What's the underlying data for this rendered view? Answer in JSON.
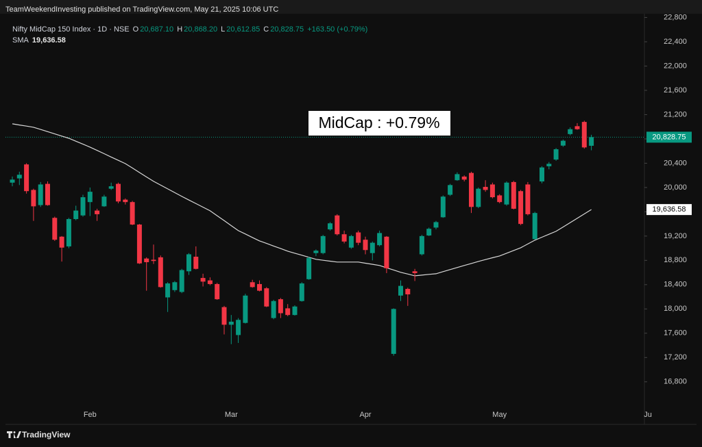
{
  "header": {
    "publisher": "TeamWeekendInvesting published on TradingView.com, May 21, 2025 10:06 UTC"
  },
  "legend": {
    "symbol": "Nifty MidCap 150 Index · 1D · NSE",
    "o_key": "O",
    "o": "20,687.10",
    "h_key": "H",
    "h": "20,868.20",
    "l_key": "L",
    "l": "20,612.85",
    "c_key": "C",
    "c": "20,828.75",
    "change": "+163.50 (+0.79%)",
    "sma_key": "SMA",
    "sma": "19,636.58"
  },
  "footer": {
    "brand": "TradingView"
  },
  "chart_data": {
    "type": "candlestick",
    "annotation": "MidCap : +0.79%",
    "up_color": "#089981",
    "down_color": "#f23645",
    "ylim": [
      16380,
      22885
    ],
    "yticks": [
      {
        "value": 16800,
        "label": "16,800"
      },
      {
        "value": 17200,
        "label": "17,200"
      },
      {
        "value": 17600,
        "label": "17,600"
      },
      {
        "value": 18000,
        "label": "18,000"
      },
      {
        "value": 18400,
        "label": "18,400"
      },
      {
        "value": 18800,
        "label": "18,800"
      },
      {
        "value": 19200,
        "label": "19,200"
      },
      {
        "value": 19600,
        "label": "19,600"
      },
      {
        "value": 20000,
        "label": "20,000"
      },
      {
        "value": 20400,
        "label": "20,400"
      },
      {
        "value": 20800,
        "label": "20,800"
      },
      {
        "value": 21200,
        "label": "21,200"
      },
      {
        "value": 21600,
        "label": "21,600"
      },
      {
        "value": 22000,
        "label": "22,000"
      },
      {
        "value": 22400,
        "label": "22,400"
      },
      {
        "value": 22800,
        "label": "22,800"
      }
    ],
    "categories": [
      null,
      null,
      null,
      null,
      null,
      null,
      null,
      null,
      null,
      null,
      null,
      "Feb",
      null,
      null,
      null,
      null,
      null,
      null,
      null,
      null,
      null,
      null,
      null,
      null,
      null,
      null,
      null,
      null,
      null,
      null,
      null,
      "Mar",
      null,
      null,
      null,
      null,
      null,
      null,
      null,
      null,
      null,
      null,
      null,
      null,
      null,
      null,
      null,
      null,
      null,
      null,
      "Apr",
      null,
      null,
      null,
      null,
      null,
      null,
      null,
      null,
      null,
      null,
      null,
      null,
      null,
      null,
      null,
      null,
      null,
      null,
      "May",
      null,
      null,
      null,
      null,
      null,
      null,
      null,
      null,
      null,
      null,
      null,
      null,
      null,
      null,
      null,
      null,
      null,
      null,
      null,
      null,
      "Ju"
    ],
    "open": [
      20080,
      20150,
      20380,
      19960,
      19710,
      20060,
      19500,
      19190,
      19030,
      19480,
      19540,
      19760,
      19620,
      19690,
      19980,
      20060,
      19800,
      19760,
      19390,
      18830,
      18810,
      18850,
      18190,
      18310,
      18280,
      18620,
      18860,
      18510,
      18470,
      18410,
      18030,
      17740,
      17570,
      17770,
      18440,
      18410,
      18340,
      17850,
      18160,
      18010,
      17900,
      18130,
      18490,
      18920,
      18920,
      19310,
      19540,
      19230,
      19010,
      19260,
      19140,
      18920,
      19050,
      19190,
      17260,
      18220,
      18330,
      18620,
      18900,
      19210,
      19340,
      19510,
      19880,
      20120,
      20180,
      20240,
      19680,
      20010,
      20050,
      19870,
      19720,
      20090,
      19940,
      20050,
      19150,
      20100,
      20350,
      20460,
      20690,
      20880,
      21010,
      21080,
      20687.1,
      null,
      null,
      null,
      null,
      null,
      null,
      null,
      null
    ],
    "high": [
      20180,
      20260,
      20400,
      19980,
      20090,
      20100,
      19520,
      19200,
      19500,
      19700,
      19880,
      20000,
      19650,
      19880,
      20080,
      20080,
      19820,
      19780,
      19400,
      18850,
      19060,
      18880,
      18440,
      18460,
      18660,
      18920,
      19030,
      18580,
      18520,
      18430,
      18050,
      17900,
      17850,
      18250,
      18480,
      18470,
      18360,
      18150,
      18180,
      18080,
      18060,
      18440,
      18860,
      18980,
      19220,
      19430,
      19560,
      19290,
      19220,
      19290,
      19190,
      19110,
      19290,
      19200,
      18010,
      18470,
      18350,
      18660,
      19220,
      19340,
      19450,
      19870,
      20060,
      20250,
      20200,
      20260,
      20000,
      20120,
      20080,
      19890,
      20100,
      20110,
      19960,
      20090,
      19600,
      20350,
      20420,
      20650,
      20790,
      20990,
      21060,
      21100,
      20868.2,
      null,
      null,
      null,
      null,
      null,
      null,
      null,
      null
    ],
    "low": [
      20020,
      20040,
      19900,
      19450,
      19680,
      19700,
      19120,
      18780,
      19000,
      19460,
      19520,
      19530,
      19450,
      19680,
      19960,
      19740,
      19720,
      19380,
      18740,
      18300,
      18740,
      18350,
      17950,
      18280,
      18260,
      18560,
      18650,
      18370,
      18390,
      18150,
      17580,
      17420,
      17440,
      17760,
      18350,
      18290,
      18030,
      17830,
      17850,
      17880,
      17890,
      18120,
      18480,
      18870,
      18900,
      19290,
      19210,
      19080,
      18990,
      19050,
      18900,
      18800,
      19030,
      18590,
      17230,
      18130,
      18050,
      18460,
      18880,
      19200,
      19310,
      19500,
      19860,
      20110,
      20100,
      19580,
      19660,
      19930,
      19820,
      19740,
      19700,
      19640,
      19380,
      19540,
      19140,
      20070,
      20300,
      20440,
      20670,
      20860,
      20950,
      20640,
      20612.85,
      null,
      null,
      null,
      null,
      null,
      null,
      null,
      null
    ],
    "close": [
      20130,
      20210,
      19940,
      19690,
      20050,
      19710,
      19140,
      19010,
      19480,
      19620,
      19840,
      19930,
      19560,
      19850,
      20020,
      19770,
      19760,
      19390,
      18750,
      18770,
      18790,
      18360,
      18420,
      18440,
      18640,
      18900,
      18660,
      18450,
      18410,
      18160,
      17740,
      17790,
      17820,
      18220,
      18360,
      18300,
      18040,
      18130,
      17930,
      17900,
      18040,
      18420,
      18840,
      18960,
      19200,
      19410,
      19230,
      19110,
      19200,
      19090,
      18970,
      19090,
      19250,
      18670,
      18000,
      18380,
      18240,
      18590,
      19200,
      19320,
      19430,
      19850,
      20040,
      20220,
      20130,
      19680,
      19980,
      19960,
      19840,
      19760,
      20080,
      19650,
      19400,
      19560,
      19580,
      20330,
      20390,
      20630,
      20770,
      20960,
      20960,
      20660,
      20828.75,
      null,
      null,
      null,
      null,
      null,
      null,
      null,
      null
    ],
    "series": [
      {
        "name": "SMA",
        "color": "#d9d9d9",
        "values": [
          21048,
          21029,
          21011,
          20992,
          20956,
          20920,
          20883,
          20847,
          20811,
          20762,
          20714,
          20665,
          20611,
          20557,
          20502,
          20448,
          20394,
          20321,
          20247,
          20174,
          20101,
          20039,
          19977,
          19915,
          19853,
          19794,
          19735,
          19676,
          19617,
          19535,
          19454,
          19372,
          19290,
          19234,
          19177,
          19121,
          19079,
          19036,
          18994,
          18952,
          18918,
          18885,
          18851,
          18817,
          18802,
          18787,
          18772,
          18772,
          18772,
          18772,
          18753,
          18735,
          18716,
          18678,
          18641,
          18603,
          18575,
          18546,
          18557,
          18569,
          18580,
          18614,
          18648,
          18682,
          18716,
          18749,
          18783,
          18813,
          18843,
          18873,
          18918,
          18963,
          19008,
          19070,
          19132,
          19181,
          19230,
          19279,
          19350,
          19422,
          19493,
          19565,
          19636.58,
          null,
          null,
          null,
          null,
          null,
          null,
          null,
          null
        ]
      }
    ],
    "last_price": {
      "value": 20828.75,
      "label": "20,828.75"
    },
    "sma_price": {
      "value": 19636.58,
      "label": "19,636.58"
    }
  }
}
